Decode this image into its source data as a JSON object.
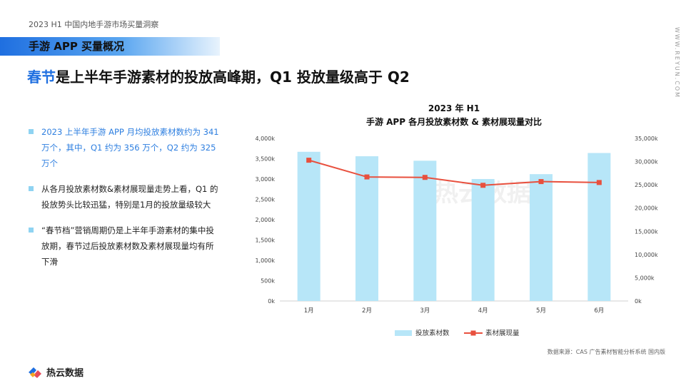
{
  "header": {
    "report_title": "2023 H1 中国内地手游市场买量洞察",
    "section_title": "手游 APP 买量概况",
    "headline_highlight": "春节",
    "headline_rest": "是上半年手游素材的投放高峰期，Q1 投放量级高于 Q2",
    "side_url": "WWW.REYUN.COM"
  },
  "bullets": [
    "2023 上半年手游 APP 月均投放素材数约为 341 万个，其中，Q1 约为 356 万个，Q2 约为 325 万个",
    "从各月投放素材数&素材展现量走势上看，Q1 的投放势头比较迅猛，特别是1月的投放量级较大",
    "“春节档”营销周期仍是上半年手游素材的集中投放期，春节过后投放素材数及素材展现量均有所下滑"
  ],
  "footer": {
    "source": "数据来源：CAS 广告素材智能分析系统 国内版",
    "logo_text": "热云数据"
  },
  "watermark": "热云数据",
  "colors": {
    "accent": "#1f6fe0",
    "bar": "#b7e6f8",
    "line": "#e8503e"
  },
  "chart_data": {
    "type": "bar",
    "title": "2023 年 H1",
    "subtitle": "手游 APP 各月投放素材数 & 素材展现量对比",
    "categories": [
      "1月",
      "2月",
      "3月",
      "4月",
      "5月",
      "6月"
    ],
    "series": [
      {
        "name": "投放素材数",
        "type": "bar",
        "axis": "left",
        "values": [
          3670,
          3560,
          3450,
          3000,
          3120,
          3640
        ]
      },
      {
        "name": "素材展现量",
        "type": "line",
        "axis": "right",
        "values": [
          30300,
          26700,
          26600,
          24900,
          25700,
          25500
        ]
      }
    ],
    "y_left": {
      "ylim": [
        0,
        4000
      ],
      "ticks": [
        "0k",
        "500k",
        "1,000k",
        "1,500k",
        "2,000k",
        "2,500k",
        "3,000k",
        "3,500k",
        "4,000k"
      ]
    },
    "y_right": {
      "ylim": [
        0,
        35000
      ],
      "ticks": [
        "0k",
        "5,000k",
        "10,000k",
        "15,000k",
        "20,000k",
        "25,000k",
        "30,000k",
        "35,000k"
      ]
    },
    "legend": "bottom"
  }
}
